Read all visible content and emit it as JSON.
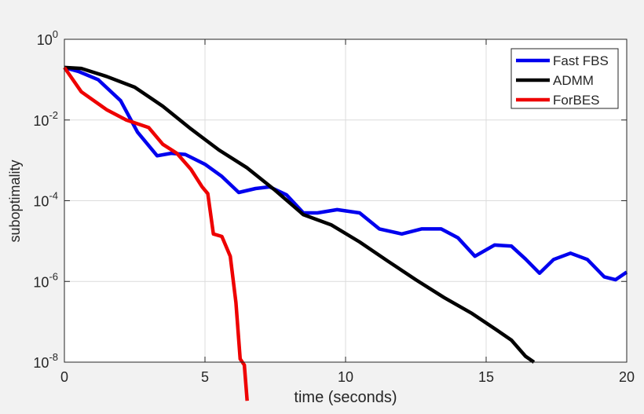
{
  "chart_data": {
    "type": "line",
    "title": "",
    "xlabel": "time (seconds)",
    "ylabel": "suboptimality",
    "xlim": [
      0,
      20
    ],
    "ylim": [
      1e-08,
      1
    ],
    "yscale": "log",
    "grid": true,
    "legend_position": "top-right",
    "x_ticks": [
      "0",
      "5",
      "10",
      "15",
      "20"
    ],
    "y_ticks": [
      {
        "base": "10",
        "exp": "0"
      },
      {
        "base": "10",
        "exp": "-2"
      },
      {
        "base": "10",
        "exp": "-4"
      },
      {
        "base": "10",
        "exp": "-6"
      },
      {
        "base": "10",
        "exp": "-8"
      }
    ],
    "series": [
      {
        "name": "Fast FBS",
        "color": "#0000ee",
        "points": [
          [
            0,
            0.2
          ],
          [
            0.5,
            0.16
          ],
          [
            1.2,
            0.1
          ],
          [
            2.0,
            0.03
          ],
          [
            2.6,
            0.005
          ],
          [
            3.3,
            0.0013
          ],
          [
            3.8,
            0.0015
          ],
          [
            4.3,
            0.0014
          ],
          [
            5.0,
            0.0008
          ],
          [
            5.6,
            0.0004
          ],
          [
            6.2,
            0.00016
          ],
          [
            6.8,
            0.0002
          ],
          [
            7.3,
            0.00022
          ],
          [
            7.9,
            0.00014
          ],
          [
            8.5,
            5e-05
          ],
          [
            9.0,
            5e-05
          ],
          [
            9.7,
            6e-05
          ],
          [
            10.5,
            5e-05
          ],
          [
            11.2,
            2e-05
          ],
          [
            12.0,
            1.5e-05
          ],
          [
            12.7,
            2e-05
          ],
          [
            13.4,
            2e-05
          ],
          [
            14.0,
            1.2e-05
          ],
          [
            14.6,
            4.2e-06
          ],
          [
            15.3,
            8e-06
          ],
          [
            15.9,
            7.5e-06
          ],
          [
            16.4,
            3.6e-06
          ],
          [
            16.9,
            1.6e-06
          ],
          [
            17.4,
            3.5e-06
          ],
          [
            18.0,
            5e-06
          ],
          [
            18.6,
            3.5e-06
          ],
          [
            19.2,
            1.3e-06
          ],
          [
            19.6,
            1.1e-06
          ],
          [
            20.0,
            1.7e-06
          ]
        ]
      },
      {
        "name": "ADMM",
        "color": "#000000",
        "points": [
          [
            0,
            0.2
          ],
          [
            0.6,
            0.19
          ],
          [
            1.5,
            0.12
          ],
          [
            2.5,
            0.065
          ],
          [
            3.5,
            0.022
          ],
          [
            4.5,
            0.006
          ],
          [
            5.5,
            0.0018
          ],
          [
            6.5,
            0.00065
          ],
          [
            7.5,
            0.00018
          ],
          [
            8.5,
            4.5e-05
          ],
          [
            9.5,
            2.5e-05
          ],
          [
            10.5,
            9.5e-06
          ],
          [
            11.5,
            3.2e-06
          ],
          [
            12.5,
            1.1e-06
          ],
          [
            13.5,
            4e-07
          ],
          [
            14.5,
            1.6e-07
          ],
          [
            15.3,
            6.8e-08
          ],
          [
            15.9,
            3.5e-08
          ],
          [
            16.4,
            1.4e-08
          ],
          [
            16.7,
            1e-08
          ]
        ]
      },
      {
        "name": "ForBES",
        "color": "#ee0000",
        "points": [
          [
            0,
            0.2
          ],
          [
            0.6,
            0.05
          ],
          [
            1.5,
            0.018
          ],
          [
            2.2,
            0.01
          ],
          [
            3.0,
            0.0065
          ],
          [
            3.5,
            0.0025
          ],
          [
            4.0,
            0.0015
          ],
          [
            4.5,
            0.0006
          ],
          [
            4.9,
            0.00022
          ],
          [
            5.1,
            0.00015
          ],
          [
            5.3,
            1.5e-05
          ],
          [
            5.6,
            1.3e-05
          ],
          [
            5.9,
            4.2e-06
          ],
          [
            6.1,
            3e-07
          ],
          [
            6.25,
            1.2e-08
          ],
          [
            6.4,
            8.5e-09
          ],
          [
            6.5,
            1.1e-09
          ]
        ]
      }
    ]
  }
}
